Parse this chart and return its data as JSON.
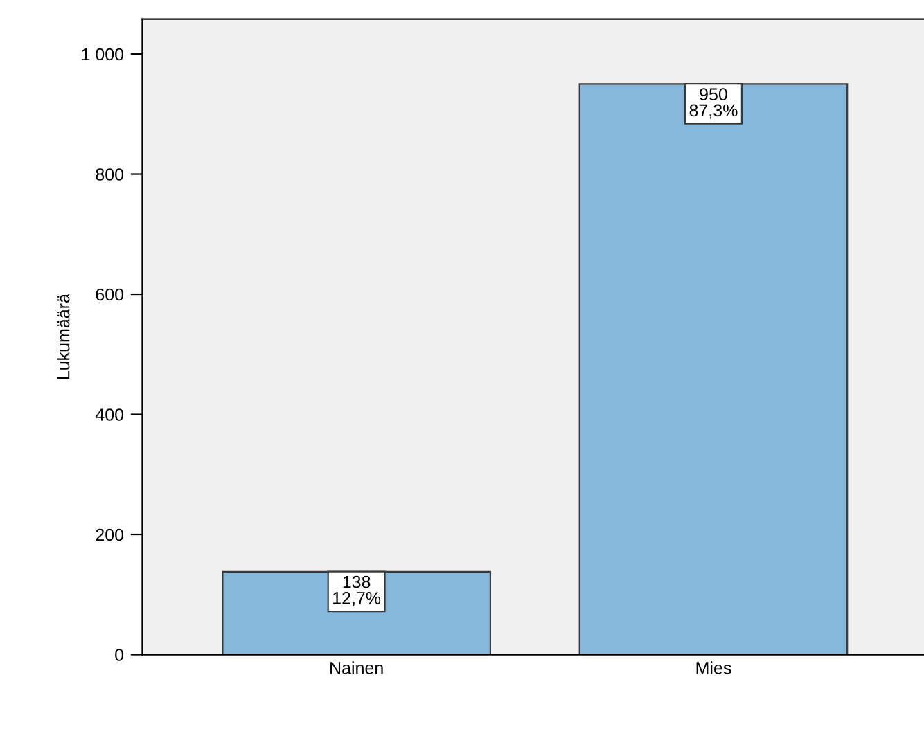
{
  "chart_data": {
    "type": "bar",
    "ylabel": "Lukumäärä",
    "categories": [
      "Nainen",
      "Mies"
    ],
    "values": [
      138,
      950
    ],
    "value_labels": [
      "138\n12,7%",
      "950\n87,3%"
    ],
    "color": "#86b8dc",
    "ylim": [
      0,
      1058
    ],
    "yticks": [
      0,
      200,
      400,
      600,
      800,
      {
        "value": 1000,
        "label": "1 000"
      }
    ],
    "grid": false,
    "legend": false
  }
}
